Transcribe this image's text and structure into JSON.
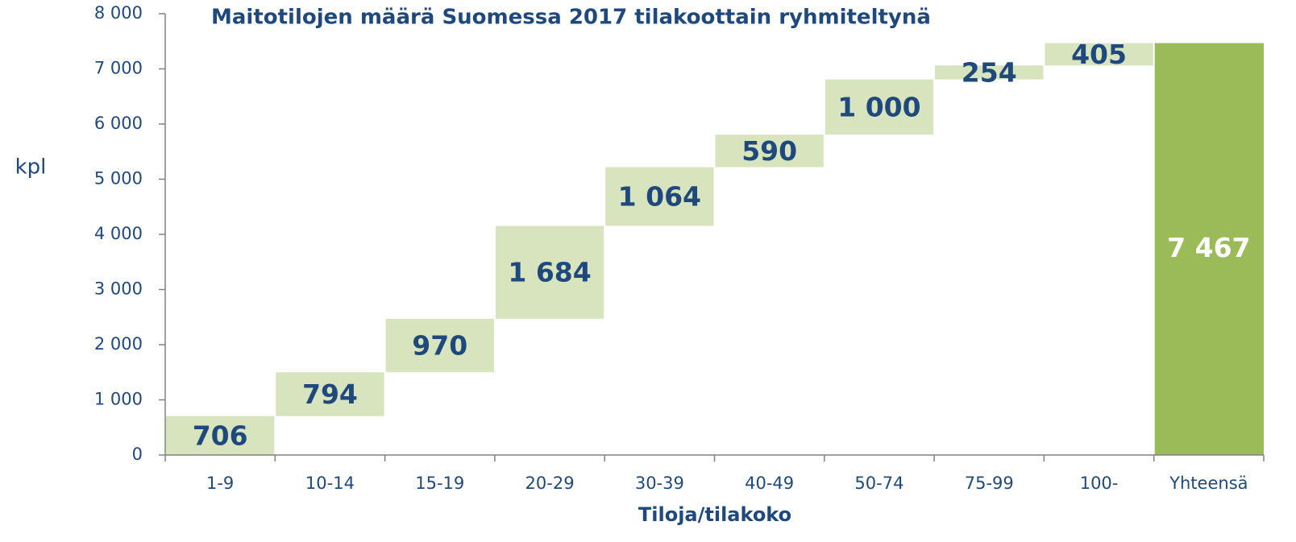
{
  "chart_data": {
    "type": "waterfall",
    "title": "Maitotilojen määrä Suomessa 2017 tilakoottain ryhmiteltynä",
    "x_label": "Tiloja/tilakoko",
    "y_label": "kpl",
    "categories": [
      "1-9",
      "10-14",
      "15-19",
      "20-29",
      "30-39",
      "40-49",
      "50-74",
      "75-99",
      "100-"
    ],
    "values": [
      706,
      794,
      970,
      1684,
      1064,
      590,
      1000,
      254,
      405
    ],
    "value_labels": [
      "706",
      "794",
      "970",
      "1 684",
      "1 064",
      "590",
      "1 000",
      "254",
      "405"
    ],
    "color": "#d7e4bd",
    "total": {
      "category": "Yhteensä",
      "value": 7467,
      "value_label": "7 467",
      "color": "#9bbb59"
    },
    "ylim": [
      0,
      8000
    ],
    "yticks": [
      0,
      {
        "value": 1000,
        "label": "1 000"
      },
      {
        "value": 2000,
        "label": "2 000"
      },
      {
        "value": 3000,
        "label": "3 000"
      },
      {
        "value": 4000,
        "label": "4 000"
      },
      {
        "value": 5000,
        "label": "5 000"
      },
      {
        "value": 6000,
        "label": "6 000"
      },
      {
        "value": 7000,
        "label": "7 000"
      },
      {
        "value": 8000,
        "label": "8 000"
      }
    ]
  }
}
